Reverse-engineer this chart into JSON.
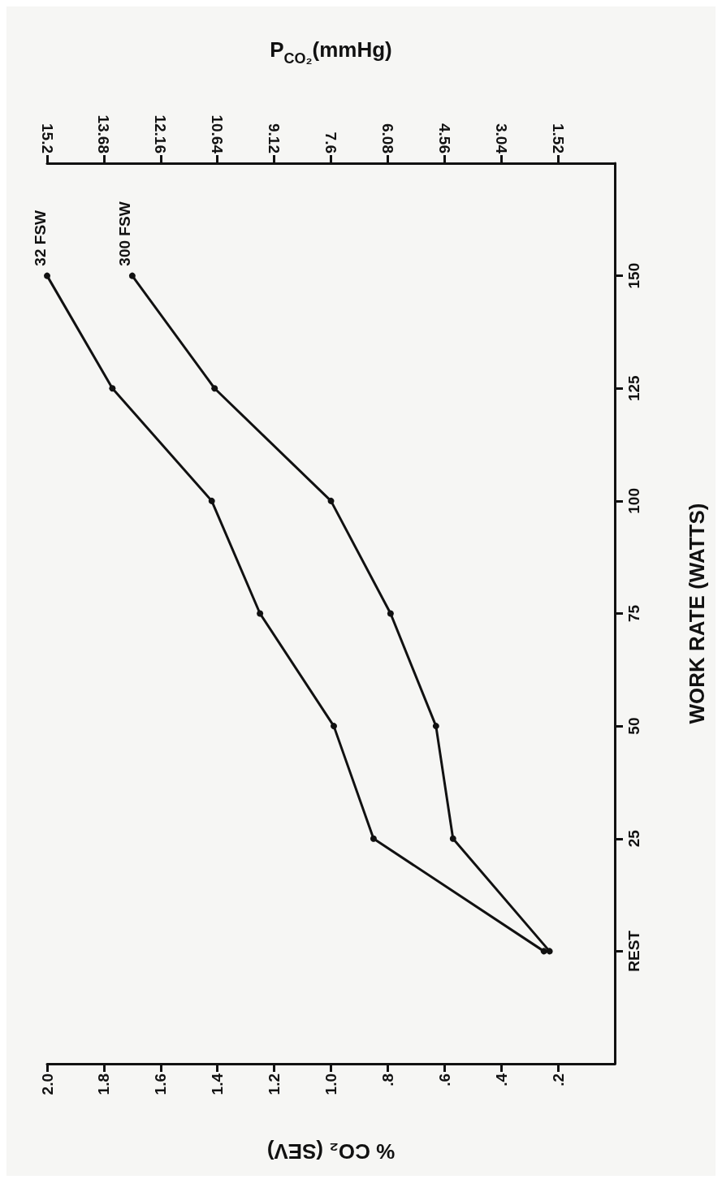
{
  "chart_data": {
    "type": "line",
    "orientation": "horizontal",
    "xlabel": "% CO₂ (SEV)",
    "x2label": "P$_{CO₂}$(mmHg)",
    "ylabel": "WORK RATE (WATTS)",
    "categories": [
      null,
      "150",
      "125",
      "100",
      "75",
      "50",
      "25",
      "REST",
      null
    ],
    "series": [
      {
        "name": "32 FSW",
        "color": "#111111",
        "values": [
          null,
          2.0,
          1.77,
          1.42,
          1.25,
          0.99,
          0.85,
          0.25,
          null
        ]
      },
      {
        "name": "300 FSW",
        "color": "#111111",
        "values": [
          null,
          1.7,
          1.41,
          1.0,
          0.79,
          0.63,
          0.57,
          0.23,
          null
        ]
      }
    ],
    "xlim": [
      2.0,
      0
    ],
    "xticks": [
      {
        "value": 2,
        "label": "2.0"
      },
      1.8,
      1.6,
      1.4,
      1.2,
      {
        "value": 1,
        "label": "1.0"
      },
      {
        "value": 0.8,
        "label": ".8"
      },
      {
        "value": 0.6,
        "label": ".6"
      },
      {
        "value": 0.4,
        "label": ".4"
      },
      {
        "value": 0.2,
        "label": ".2"
      }
    ],
    "x2lim": [
      15.2,
      0
    ],
    "x2ticks": [
      15.2,
      13.68,
      12.16,
      10.64,
      9.12,
      7.6,
      6.08,
      4.56,
      3.04,
      1.52
    ],
    "marker": "circle",
    "line_style": "solid",
    "grid": false,
    "legend": false
  }
}
